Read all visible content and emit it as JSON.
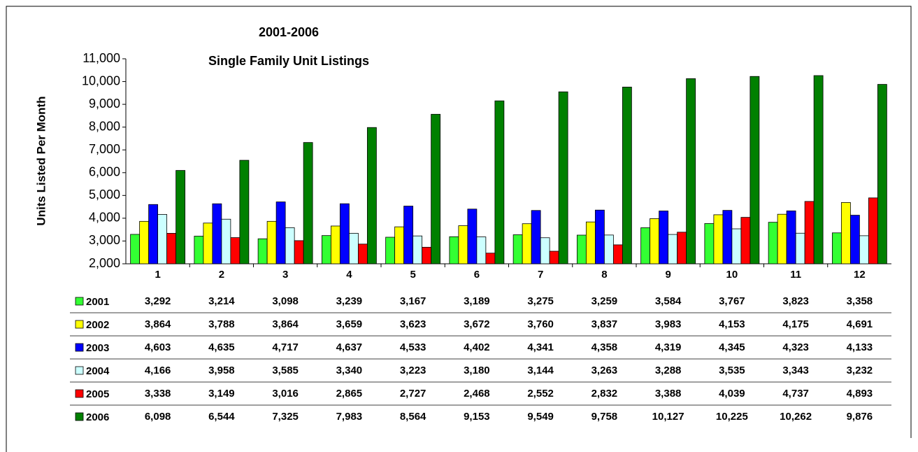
{
  "chart_data": {
    "type": "bar",
    "title": "2001-2006",
    "subtitle": "Single Family Unit Listings",
    "y_label": "Units Listed Per Month",
    "categories": [
      "1",
      "2",
      "3",
      "4",
      "5",
      "6",
      "7",
      "8",
      "9",
      "10",
      "11",
      "12"
    ],
    "ylim": [
      2000,
      11000
    ],
    "yticks": [
      {
        "value": 2000,
        "label": "2,000"
      },
      {
        "value": 3000,
        "label": "3,000"
      },
      {
        "value": 4000,
        "label": "4,000"
      },
      {
        "value": 5000,
        "label": "5,000"
      },
      {
        "value": 6000,
        "label": "6,000"
      },
      {
        "value": 7000,
        "label": "7,000"
      },
      {
        "value": 8000,
        "label": "8,000"
      },
      {
        "value": 9000,
        "label": "9,000"
      },
      {
        "value": 10000,
        "label": "10,000"
      },
      {
        "value": 11000,
        "label": "11,000"
      }
    ],
    "grid": false,
    "series": [
      {
        "name": "2001",
        "color": "#33ff33",
        "values": [
          3292,
          3214,
          3098,
          3239,
          3167,
          3189,
          3275,
          3259,
          3584,
          3767,
          3823,
          3358
        ],
        "value_labels": [
          "3,292",
          "3,214",
          "3,098",
          "3,239",
          "3,167",
          "3,189",
          "3,275",
          "3,259",
          "3,584",
          "3,767",
          "3,823",
          "3,358"
        ]
      },
      {
        "name": "2002",
        "color": "#ffff00",
        "values": [
          3864,
          3788,
          3864,
          3659,
          3623,
          3672,
          3760,
          3837,
          3983,
          4153,
          4175,
          4691
        ],
        "value_labels": [
          "3,864",
          "3,788",
          "3,864",
          "3,659",
          "3,623",
          "3,672",
          "3,760",
          "3,837",
          "3,983",
          "4,153",
          "4,175",
          "4,691"
        ]
      },
      {
        "name": "2003",
        "color": "#0000ff",
        "values": [
          4603,
          4635,
          4717,
          4637,
          4533,
          4402,
          4341,
          4358,
          4319,
          4345,
          4323,
          4133
        ],
        "value_labels": [
          "4,603",
          "4,635",
          "4,717",
          "4,637",
          "4,533",
          "4,402",
          "4,341",
          "4,358",
          "4,319",
          "4,345",
          "4,323",
          "4,133"
        ]
      },
      {
        "name": "2004",
        "color": "#ccffff",
        "values": [
          4166,
          3958,
          3585,
          3340,
          3223,
          3180,
          3144,
          3263,
          3288,
          3535,
          3343,
          3232
        ],
        "value_labels": [
          "4,166",
          "3,958",
          "3,585",
          "3,340",
          "3,223",
          "3,180",
          "3,144",
          "3,263",
          "3,288",
          "3,535",
          "3,343",
          "3,232"
        ]
      },
      {
        "name": "2005",
        "color": "#ff0000",
        "values": [
          3338,
          3149,
          3016,
          2865,
          2727,
          2468,
          2552,
          2832,
          3388,
          4039,
          4737,
          4893
        ],
        "value_labels": [
          "3,338",
          "3,149",
          "3,016",
          "2,865",
          "2,727",
          "2,468",
          "2,552",
          "2,832",
          "3,388",
          "4,039",
          "4,737",
          "4,893"
        ]
      },
      {
        "name": "2006",
        "color": "#008000",
        "values": [
          6098,
          6544,
          7325,
          7983,
          8564,
          9153,
          9549,
          9758,
          10127,
          10225,
          10262,
          9876
        ],
        "value_labels": [
          "6,098",
          "6,544",
          "7,325",
          "7,983",
          "8,564",
          "9,153",
          "9,549",
          "9,758",
          "10,127",
          "10,225",
          "10,262",
          "9,876"
        ]
      }
    ]
  }
}
